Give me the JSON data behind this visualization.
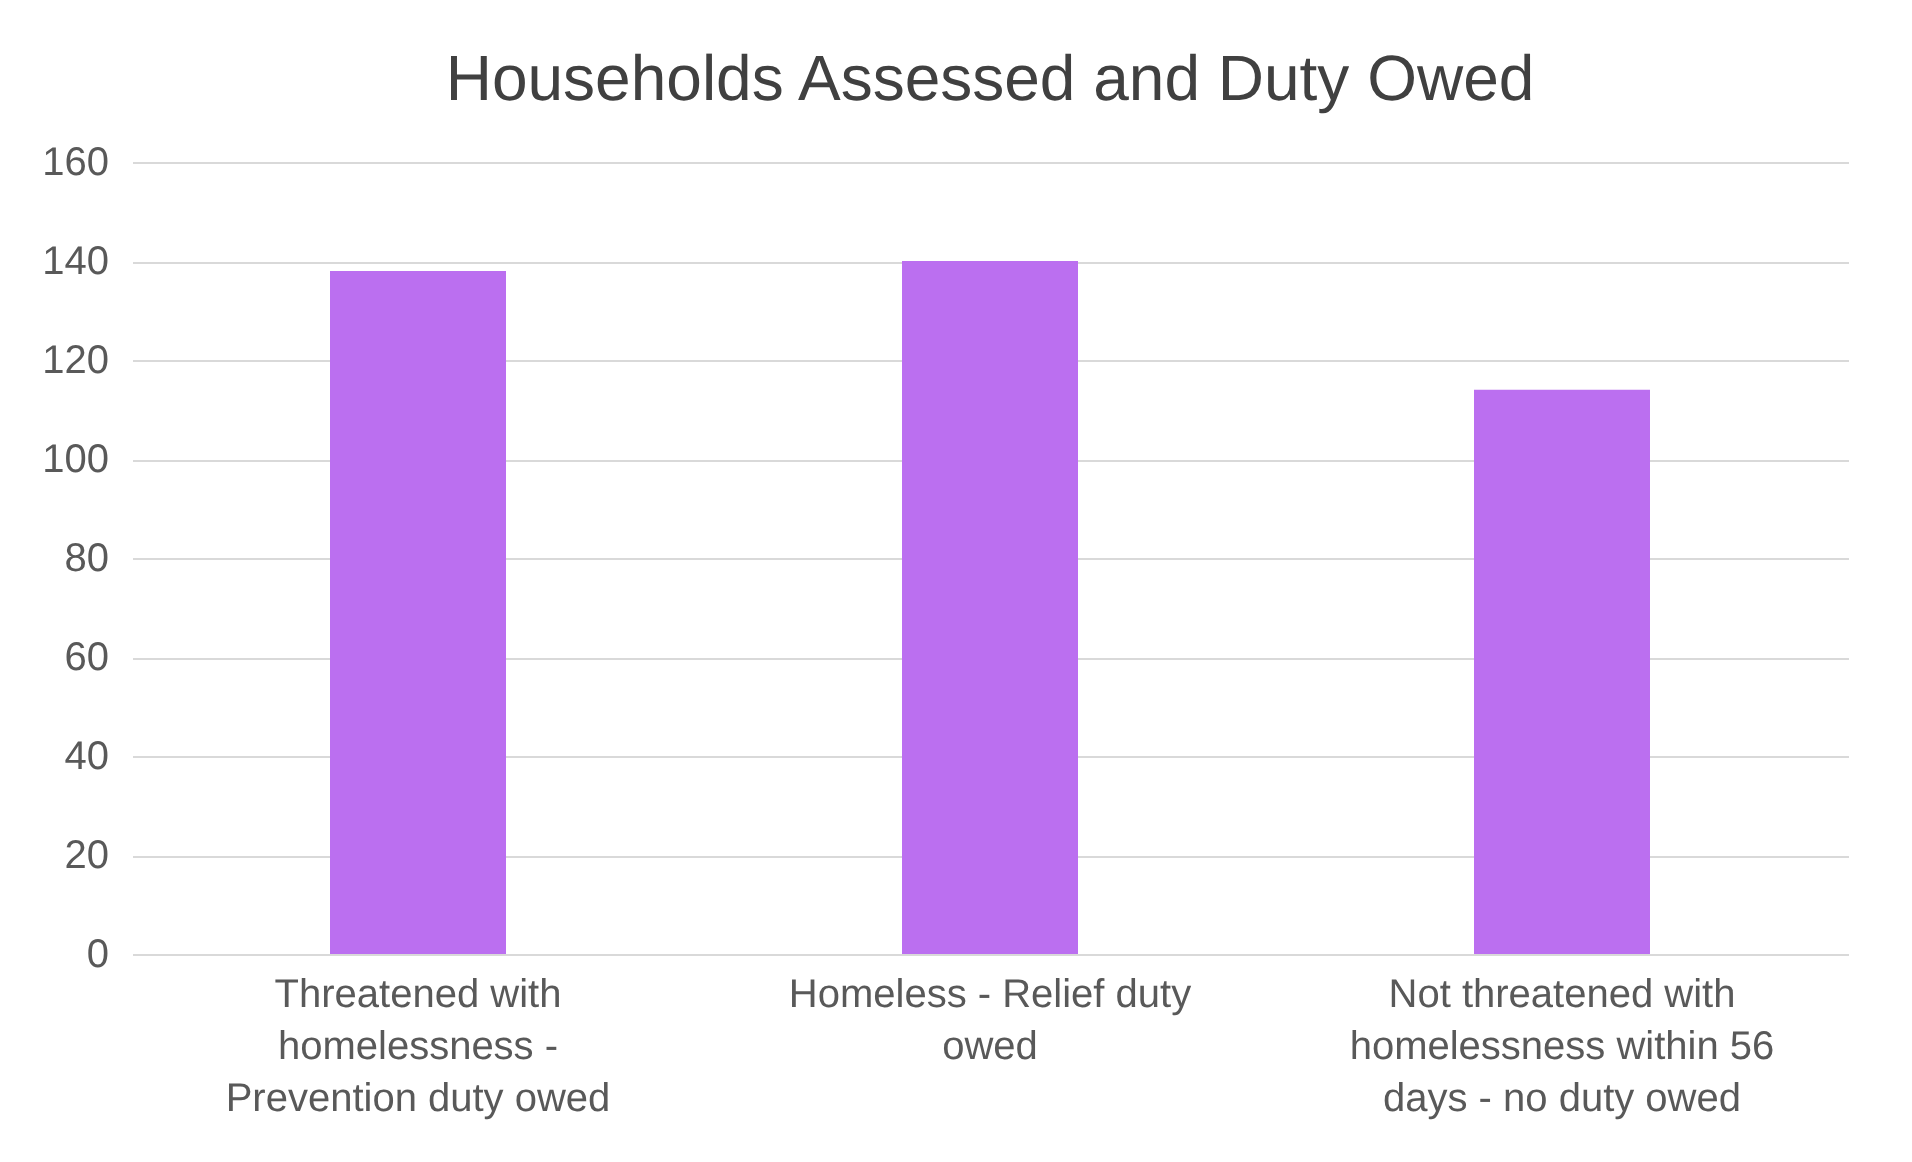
{
  "chart_data": {
    "type": "bar",
    "title": "Households Assessed and Duty Owed",
    "categories": [
      "Threatened with homelessness - Prevention duty owed",
      "Homeless - Relief duty owed",
      "Not threatened with homelessness within 56 days - no duty owed"
    ],
    "values": [
      138,
      140,
      114
    ],
    "color": "#bb6ff0",
    "ylim": [
      0,
      160
    ],
    "yticks": [
      0,
      20,
      40,
      60,
      80,
      100,
      120,
      140,
      160
    ],
    "grid": "y"
  }
}
